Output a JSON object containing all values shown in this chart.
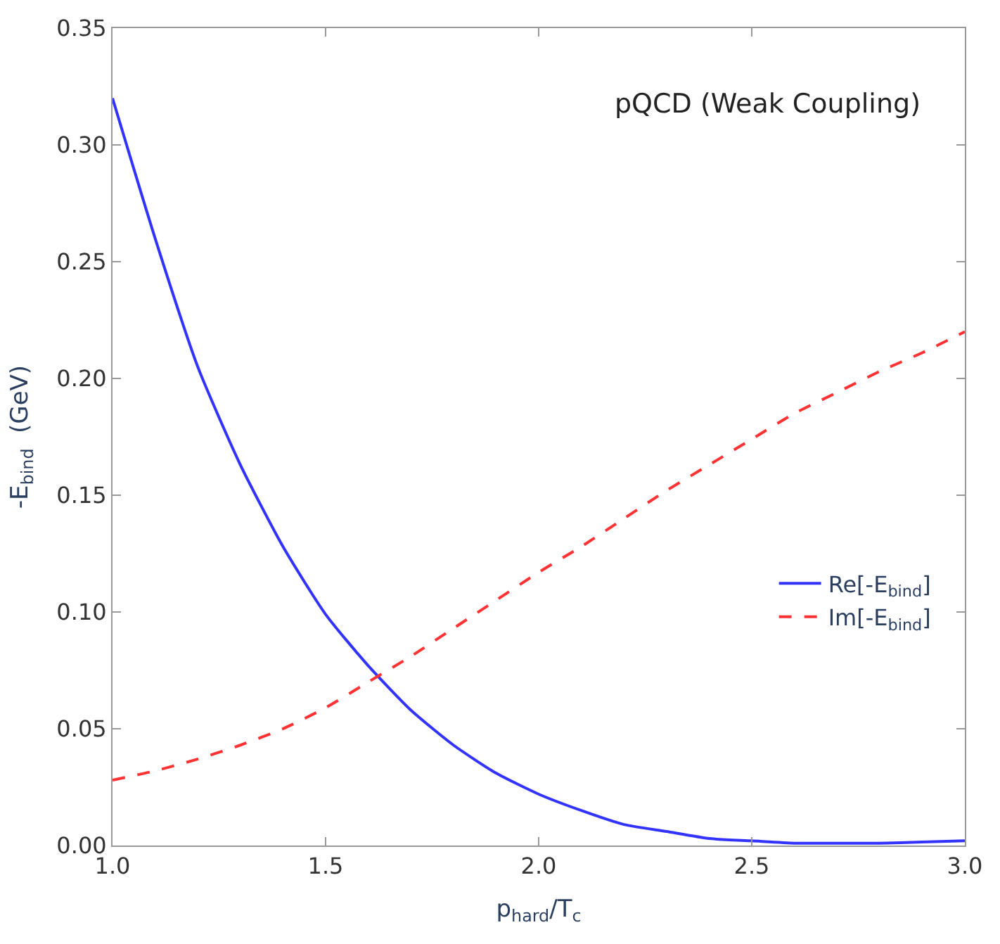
{
  "chart_data": {
    "type": "line",
    "xlabel": "p$_{hard}$/T$_{c}$",
    "ylabel": "-E$_{bind}$  (GeV)",
    "annotations": [
      "pQCD (Weak Coupling)"
    ],
    "x": [
      1.0,
      1.1,
      1.2,
      1.3,
      1.4,
      1.5,
      1.6,
      1.7,
      1.8,
      1.9,
      2.0,
      2.1,
      2.2,
      2.3,
      2.4,
      2.5,
      2.6,
      2.7,
      2.8,
      2.9,
      3.0
    ],
    "series": [
      {
        "name": "Re[-E$_{bind}$]",
        "color": "#3333ff",
        "line_style": "solid",
        "values": [
          0.32,
          0.26,
          0.205,
          0.163,
          0.128,
          0.099,
          0.077,
          0.058,
          0.043,
          0.031,
          0.022,
          0.015,
          0.009,
          0.006,
          0.003,
          0.002,
          0.001,
          0.001,
          0.001,
          0.0015,
          0.002
        ]
      },
      {
        "name": "Im[-E$_{bind}$]",
        "color": "#ff3333",
        "line_style": "dashed",
        "values": [
          0.028,
          0.032,
          0.037,
          0.043,
          0.05,
          0.059,
          0.07,
          0.081,
          0.093,
          0.105,
          0.117,
          0.128,
          0.14,
          0.152,
          0.163,
          0.174,
          0.185,
          0.194,
          0.203,
          0.211,
          0.22
        ]
      }
    ],
    "xlim": [
      1.0,
      3.0
    ],
    "xticks": [
      {
        "value": 1.0,
        "label": "1.0"
      },
      {
        "value": 1.5,
        "label": "1.5"
      },
      {
        "value": 2.0,
        "label": "2.0"
      },
      {
        "value": 2.5,
        "label": "2.5"
      },
      {
        "value": 3.0,
        "label": "3.0"
      }
    ],
    "ylim": [
      0,
      0.35
    ],
    "yticks": [
      {
        "value": 0,
        "label": "0.00"
      },
      {
        "value": 0.05,
        "label": "0.05"
      },
      {
        "value": 0.1,
        "label": "0.10"
      },
      {
        "value": 0.15,
        "label": "0.15"
      },
      {
        "value": 0.2,
        "label": "0.20"
      },
      {
        "value": 0.25,
        "label": "0.25"
      },
      {
        "value": 0.3,
        "label": "0.30"
      },
      {
        "value": 0.35,
        "label": "0.35"
      }
    ],
    "legend": "right"
  }
}
